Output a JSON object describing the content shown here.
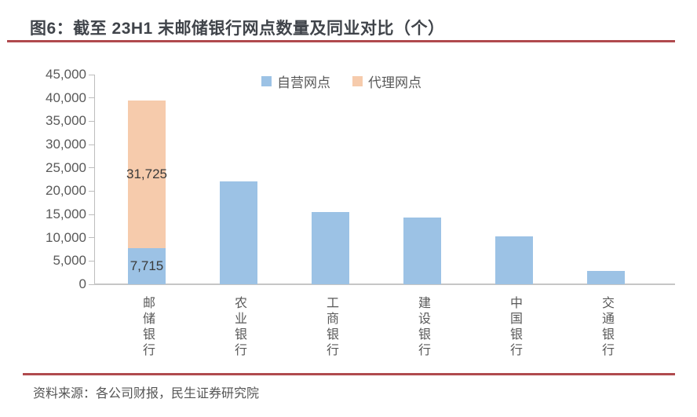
{
  "figure": {
    "title": "图6：截至 23H1 末邮储银行网点数量及同业对比（个）",
    "source": "资料来源：各公司财报，民生证券研究院"
  },
  "colors": {
    "accent_rule": "#B04A4E",
    "self_operated": "#9CC2E5",
    "agency": "#F6CBAC",
    "axis": "#BDBDBD",
    "tick_text": "#595959",
    "title_text": "#40444A",
    "value_label_text": "#3A3A3A"
  },
  "chart_data": {
    "type": "bar",
    "stacked": true,
    "title": "截至 23H1 末邮储银行网点数量及同业对比（个）",
    "categories": [
      "邮储银行",
      "农业银行",
      "工商银行",
      "建设银行",
      "中国银行",
      "交通银行"
    ],
    "series": [
      {
        "name": "自营网点",
        "color_key": "self_operated",
        "values": [
          7715,
          22000,
          15500,
          14300,
          10300,
          2800
        ]
      },
      {
        "name": "代理网点",
        "color_key": "agency",
        "values": [
          31725,
          0,
          0,
          0,
          0,
          0
        ]
      }
    ],
    "data_labels": [
      {
        "category_index": 0,
        "series": "代理网点",
        "text": "31,725"
      },
      {
        "category_index": 0,
        "series": "自营网点",
        "text": "7,715"
      }
    ],
    "xlabel": "",
    "ylabel": "",
    "ylim": [
      0,
      45000
    ],
    "ytick_step": 5000,
    "ytick_labels": [
      "0",
      "5,000",
      "10,000",
      "15,000",
      "20,000",
      "25,000",
      "30,000",
      "35,000",
      "40,000",
      "45,000"
    ],
    "legend": [
      "自营网点",
      "代理网点"
    ],
    "legend_position": "top-center",
    "grid": false
  }
}
